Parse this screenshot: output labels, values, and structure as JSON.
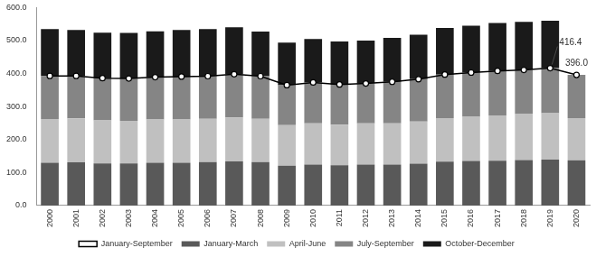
{
  "chart_data": {
    "type": "bar",
    "stacked": true,
    "grid": false,
    "legend": "bottom",
    "categories": [
      "2000",
      "2001",
      "2002",
      "2003",
      "2004",
      "2005",
      "2006",
      "2007",
      "2008",
      "2009",
      "2010",
      "2011",
      "2012",
      "2013",
      "2014",
      "2015",
      "2016",
      "2017",
      "2018",
      "2019",
      "2020"
    ],
    "series": [
      {
        "name": "January-March",
        "type": "bar",
        "color": "#595959",
        "values": [
          130,
          131,
          128,
          128,
          130,
          130,
          132,
          134,
          132,
          121,
          124,
          122,
          124,
          124,
          127,
          133,
          135,
          136,
          138,
          139,
          137
        ]
      },
      {
        "name": "April-June",
        "type": "bar",
        "color": "#c0c0c0",
        "values": [
          132,
          133,
          130,
          129,
          131,
          131,
          131,
          133,
          131,
          123,
          125,
          123,
          125,
          125,
          128,
          132,
          134,
          137,
          139,
          141,
          128
        ]
      },
      {
        "name": "July-September",
        "type": "bar",
        "color": "#858585",
        "values": [
          131,
          129,
          128,
          128,
          128,
          130,
          129,
          131,
          129,
          121,
          124,
          122,
          121,
          126,
          128,
          132,
          134,
          135,
          134,
          136.4,
          131
        ]
      },
      {
        "name": "October-December",
        "type": "bar",
        "color": "#1a1a1a",
        "values": [
          142,
          139,
          138,
          138,
          139,
          141,
          143,
          142,
          135,
          129,
          132,
          130,
          130,
          133,
          135,
          141,
          142,
          145,
          146,
          143.6,
          null
        ]
      },
      {
        "name": "January-September",
        "type": "line",
        "color": "#000000",
        "marker": "circle",
        "line_style": "solid",
        "values": [
          393,
          393,
          386,
          385,
          389,
          391,
          392,
          398,
          392,
          365,
          373,
          367,
          370,
          375,
          383,
          397,
          403,
          408,
          411,
          416.4,
          396.0
        ]
      }
    ],
    "annotations": [
      {
        "text": "416.4",
        "category": "2019",
        "value": 416.4
      },
      {
        "text": "396.0",
        "category": "2020",
        "value": 396.0
      }
    ],
    "ylim": [
      0,
      600
    ],
    "yticks": [
      {
        "value": 0,
        "label": "0.0"
      },
      {
        "value": 100,
        "label": "100.0"
      },
      {
        "value": 200,
        "label": "200.0"
      },
      {
        "value": 300,
        "label": "300.0"
      },
      {
        "value": 400,
        "label": "400.0"
      },
      {
        "value": 500,
        "label": "500.0"
      },
      {
        "value": 600,
        "label": "600.0"
      }
    ]
  }
}
